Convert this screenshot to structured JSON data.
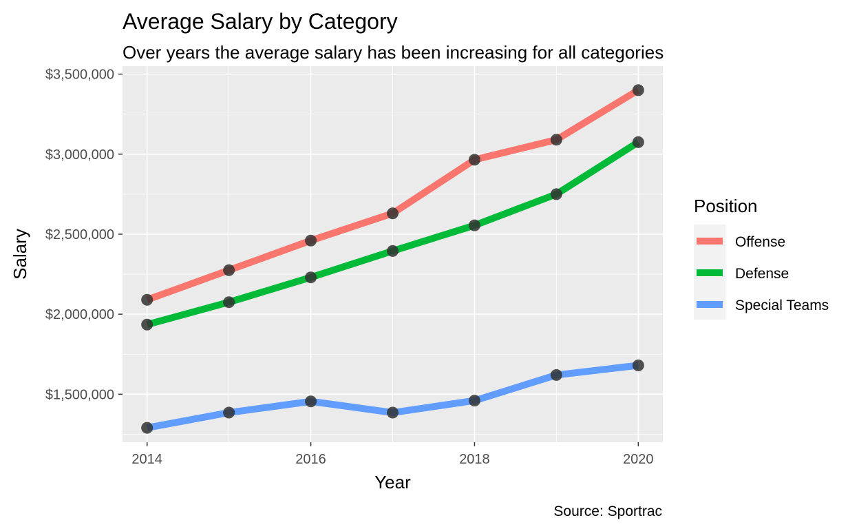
{
  "chart_data": {
    "type": "line",
    "title": "Average Salary by Category",
    "subtitle": "Over years the average salary has been increasing for all categories",
    "xlabel": "Year",
    "ylabel": "Salary",
    "caption": "Source: Sportrac",
    "x": [
      2014,
      2015,
      2016,
      2017,
      2018,
      2019,
      2020
    ],
    "xlim": [
      2013.7,
      2020.3
    ],
    "ylim": [
      1200000,
      3550000
    ],
    "x_ticks": [
      2014,
      2016,
      2018,
      2020
    ],
    "x_tick_labels": [
      "2014",
      "2016",
      "2018",
      "2020"
    ],
    "y_ticks": [
      1500000,
      2000000,
      2500000,
      3000000,
      3500000
    ],
    "y_tick_labels": [
      "$1,500,000",
      "$2,000,000",
      "$2,500,000",
      "$3,000,000",
      "$3,500,000"
    ],
    "grid": true,
    "legend": {
      "title": "Position",
      "placement": "right"
    },
    "panel_background": "#ebebeb",
    "point_color": "#333333",
    "series": [
      {
        "name": "Offense",
        "color": "#f8766d",
        "values": [
          2090000,
          2275000,
          2460000,
          2630000,
          2965000,
          3090000,
          3400000
        ]
      },
      {
        "name": "Defense",
        "color": "#00ba38",
        "values": [
          1935000,
          2075000,
          2230000,
          2395000,
          2555000,
          2750000,
          3075000
        ]
      },
      {
        "name": "Special Teams",
        "color": "#619cff",
        "values": [
          1290000,
          1385000,
          1455000,
          1385000,
          1460000,
          1620000,
          1680000
        ]
      }
    ]
  }
}
